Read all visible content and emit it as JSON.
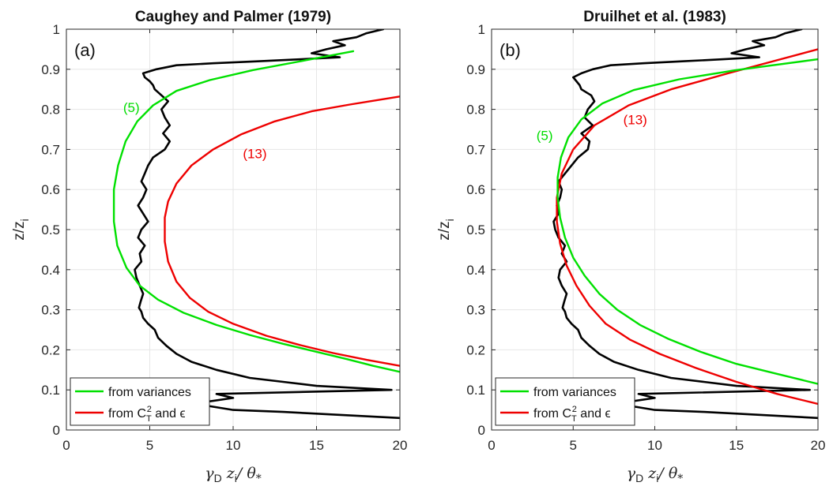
{
  "chart_data": [
    {
      "type": "line",
      "panel_label": "(a)",
      "title": "Caughey and Palmer (1979)",
      "xlabel_parts": [
        "γ",
        "D",
        "z",
        "i",
        "/ θ",
        "*"
      ],
      "ylabel_parts": [
        "z/z",
        "i"
      ],
      "xlim": [
        0,
        20
      ],
      "ylim": [
        0,
        1
      ],
      "xticks": [
        0,
        5,
        10,
        15,
        20
      ],
      "yticks": [
        0,
        0.1,
        0.2,
        0.3,
        0.4,
        0.5,
        0.6,
        0.7,
        0.8,
        0.9,
        1
      ],
      "grid": true,
      "legend_position": "bottom-left",
      "legend": [
        {
          "text": "from variances",
          "series": "green"
        },
        {
          "text_parts": [
            "from C",
            "T",
            "2",
            " and ϵ"
          ],
          "series": "red"
        }
      ],
      "annotations": [
        {
          "text": "(5)",
          "color": "#00dd00",
          "x": 3.9,
          "y": 0.805
        },
        {
          "text": "(13)",
          "color": "#ee0000",
          "x": 11.3,
          "y": 0.69
        }
      ],
      "series": [
        {
          "key": "green",
          "color": "#00e000",
          "x": [
            20.0,
            18.4,
            16.8,
            15.0,
            13.0,
            11.0,
            9.0,
            7.0,
            5.5,
            4.4,
            3.6,
            3.05,
            2.85,
            2.85,
            3.1,
            3.55,
            4.25,
            5.2,
            6.6,
            8.6,
            11.2,
            14.3,
            17.2
          ],
          "y": [
            0.145,
            0.16,
            0.177,
            0.195,
            0.215,
            0.237,
            0.262,
            0.293,
            0.325,
            0.36,
            0.405,
            0.46,
            0.52,
            0.6,
            0.66,
            0.72,
            0.77,
            0.81,
            0.846,
            0.873,
            0.898,
            0.922,
            0.945
          ]
        },
        {
          "key": "red",
          "color": "#ee0000",
          "x": [
            20.0,
            18.0,
            16.0,
            14.0,
            12.0,
            10.0,
            8.5,
            7.4,
            6.6,
            6.1,
            5.9,
            5.9,
            6.1,
            6.6,
            7.5,
            8.8,
            10.5,
            12.5,
            14.7,
            17.0,
            20.0
          ],
          "y": [
            0.16,
            0.175,
            0.192,
            0.212,
            0.235,
            0.265,
            0.295,
            0.33,
            0.37,
            0.42,
            0.47,
            0.53,
            0.57,
            0.615,
            0.66,
            0.7,
            0.738,
            0.77,
            0.795,
            0.812,
            0.832
          ]
        },
        {
          "key": "black",
          "color": "#000000",
          "x": [
            20.0,
            13.0,
            10.0,
            8.5,
            7.5,
            10.0,
            9.0,
            19.5,
            15.0,
            13.0,
            11.0,
            9.0,
            7.5,
            6.6,
            6.0,
            5.5,
            5.3,
            4.9,
            4.6,
            4.5,
            4.35,
            4.45,
            4.6,
            4.4,
            4.2,
            4.1,
            4.5,
            4.4,
            4.7,
            4.3,
            4.5,
            4.9,
            4.6,
            4.3,
            4.6,
            4.8,
            4.5,
            4.7,
            4.9,
            5.2,
            5.9,
            6.2,
            5.8,
            6.2,
            5.9,
            5.7,
            6.1,
            5.7,
            5.3,
            5.2,
            5.0,
            4.7,
            4.6,
            5.4,
            6.6,
            8.8,
            11.6,
            14.1,
            16.4,
            14.7,
            15.6,
            16.7,
            16.0,
            17.4,
            18.0,
            19.0
          ],
          "y": [
            0.03,
            0.045,
            0.05,
            0.06,
            0.065,
            0.08,
            0.09,
            0.1,
            0.11,
            0.12,
            0.13,
            0.15,
            0.17,
            0.19,
            0.21,
            0.23,
            0.25,
            0.265,
            0.28,
            0.295,
            0.305,
            0.32,
            0.34,
            0.36,
            0.38,
            0.4,
            0.42,
            0.44,
            0.46,
            0.48,
            0.5,
            0.52,
            0.54,
            0.56,
            0.58,
            0.6,
            0.62,
            0.64,
            0.66,
            0.68,
            0.7,
            0.72,
            0.74,
            0.76,
            0.78,
            0.8,
            0.82,
            0.835,
            0.85,
            0.86,
            0.87,
            0.88,
            0.89,
            0.9,
            0.91,
            0.915,
            0.92,
            0.925,
            0.93,
            0.94,
            0.95,
            0.96,
            0.97,
            0.98,
            0.99,
            1.0
          ]
        }
      ]
    },
    {
      "type": "line",
      "panel_label": "(b)",
      "title": "Druilhet et al. (1983)",
      "xlabel_parts": [
        "γ",
        "D",
        "z",
        "i",
        "/ θ",
        "*"
      ],
      "ylabel_parts": [
        "z/z",
        "i"
      ],
      "xlim": [
        0,
        20
      ],
      "ylim": [
        0,
        1
      ],
      "xticks": [
        0,
        5,
        10,
        15,
        20
      ],
      "yticks": [
        0,
        0.1,
        0.2,
        0.3,
        0.4,
        0.5,
        0.6,
        0.7,
        0.8,
        0.9,
        1
      ],
      "grid": true,
      "legend_position": "bottom-left",
      "legend": [
        {
          "text": "from variances",
          "series": "green"
        },
        {
          "text_parts": [
            "from C",
            "T",
            "2",
            " and ϵ"
          ],
          "series": "red"
        }
      ],
      "annotations": [
        {
          "text": "(5)",
          "color": "#00dd00",
          "x": 3.25,
          "y": 0.735
        },
        {
          "text": "(13)",
          "color": "#ee0000",
          "x": 8.8,
          "y": 0.775
        }
      ],
      "series": [
        {
          "key": "green",
          "color": "#00e000",
          "x": [
            20.0,
            17.5,
            15.0,
            12.8,
            10.8,
            9.1,
            7.7,
            6.6,
            5.7,
            5.0,
            4.5,
            4.2,
            4.05,
            4.05,
            4.25,
            4.7,
            5.5,
            6.8,
            8.7,
            11.5,
            15.0,
            20.0
          ],
          "y": [
            0.115,
            0.14,
            0.165,
            0.195,
            0.228,
            0.262,
            0.3,
            0.34,
            0.385,
            0.43,
            0.48,
            0.53,
            0.58,
            0.63,
            0.68,
            0.73,
            0.775,
            0.815,
            0.848,
            0.875,
            0.898,
            0.925
          ]
        },
        {
          "key": "red",
          "color": "#ee0000",
          "x": [
            20.0,
            17.5,
            15.0,
            12.5,
            10.3,
            8.5,
            7.0,
            6.0,
            5.2,
            4.6,
            4.2,
            4.0,
            4.0,
            4.3,
            5.0,
            6.3,
            8.4,
            11.0,
            14.5,
            20.0
          ],
          "y": [
            0.065,
            0.09,
            0.12,
            0.155,
            0.19,
            0.225,
            0.265,
            0.31,
            0.36,
            0.41,
            0.465,
            0.52,
            0.58,
            0.64,
            0.7,
            0.76,
            0.81,
            0.85,
            0.89,
            0.95
          ]
        },
        {
          "key": "black",
          "color": "#000000",
          "x": [
            20.0,
            13.0,
            10.0,
            8.5,
            7.5,
            10.0,
            9.0,
            19.5,
            15.0,
            13.0,
            11.0,
            9.0,
            7.5,
            6.6,
            6.0,
            5.5,
            5.3,
            4.9,
            4.6,
            4.5,
            4.35,
            4.45,
            4.6,
            4.3,
            4.1,
            4.2,
            4.6,
            4.3,
            4.5,
            4.1,
            3.9,
            3.8,
            4.1,
            4.0,
            4.2,
            4.3,
            4.1,
            4.5,
            4.9,
            5.3,
            5.9,
            6.0,
            5.5,
            6.2,
            5.7,
            5.9,
            6.3,
            6.1,
            5.5,
            5.4,
            5.2,
            5.0,
            5.5,
            6.2,
            7.3,
            9.3,
            11.8,
            14.2,
            16.4,
            14.7,
            15.6,
            16.7,
            16.0,
            17.4,
            18.0,
            19.0
          ],
          "y": [
            0.03,
            0.045,
            0.05,
            0.06,
            0.065,
            0.08,
            0.09,
            0.1,
            0.11,
            0.12,
            0.13,
            0.15,
            0.17,
            0.19,
            0.21,
            0.23,
            0.25,
            0.265,
            0.28,
            0.295,
            0.305,
            0.32,
            0.34,
            0.36,
            0.38,
            0.4,
            0.42,
            0.44,
            0.46,
            0.48,
            0.5,
            0.52,
            0.54,
            0.56,
            0.58,
            0.6,
            0.62,
            0.64,
            0.66,
            0.68,
            0.7,
            0.72,
            0.74,
            0.76,
            0.78,
            0.8,
            0.82,
            0.835,
            0.85,
            0.86,
            0.87,
            0.88,
            0.89,
            0.9,
            0.91,
            0.915,
            0.92,
            0.925,
            0.93,
            0.94,
            0.95,
            0.96,
            0.97,
            0.98,
            0.99,
            1.0
          ]
        }
      ]
    }
  ]
}
